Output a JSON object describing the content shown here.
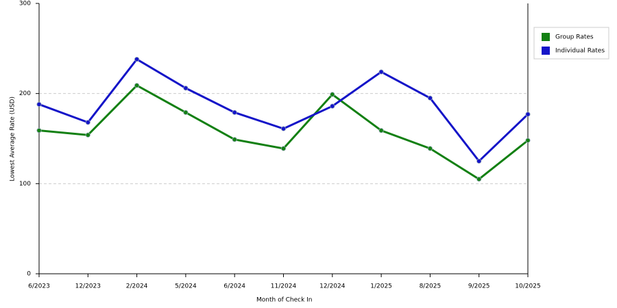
{
  "chart_data": {
    "type": "line",
    "x_label": "Month of Check In",
    "y_label": "Lowest Average Rate (USD)",
    "categories": [
      "6/2023",
      "12/2023",
      "2/2024",
      "5/2024",
      "6/2024",
      "11/2024",
      "12/2024",
      "1/2025",
      "8/2025",
      "9/2025",
      "10/2025"
    ],
    "series": [
      {
        "name": "Group Rates",
        "color": "#138013",
        "values": [
          159,
          154,
          209,
          179,
          149,
          139,
          199,
          159,
          139,
          105,
          148
        ]
      },
      {
        "name": "Individual Rates",
        "color": "#1414c8",
        "values": [
          188,
          168,
          238,
          206,
          179,
          161,
          186,
          224,
          195,
          125,
          177
        ]
      }
    ],
    "ylim": [
      0,
      300
    ],
    "yticks": [
      0,
      100,
      200,
      300
    ],
    "grid": true,
    "legend": "right"
  }
}
